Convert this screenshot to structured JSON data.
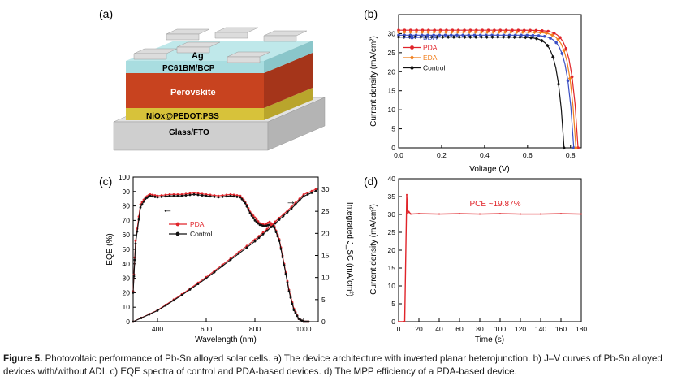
{
  "panels": {
    "a": {
      "label": "(a)",
      "layers": [
        "Ag",
        "PC61BM/BCP",
        "Perovskite",
        "NiOx@PEDOT:PSS",
        "Glass/FTO"
      ],
      "colors": {
        "ag": "#d9d9d9",
        "pcbm": "#a9dde0",
        "perovskite": "#c8431f",
        "nio": "#d7c23a",
        "glass": "#cfcfcf"
      }
    },
    "b": {
      "label": "(b)"
    },
    "c": {
      "label": "(c)"
    },
    "d": {
      "label": "(d)"
    }
  },
  "chart_data": [
    {
      "panel": "b",
      "type": "line",
      "xlabel": "Voltage (V)",
      "ylabel": "Current density (mA/cm²)",
      "xlim": [
        0.0,
        0.85
      ],
      "ylim": [
        0,
        35
      ],
      "xticks": [
        "0.0",
        "0.2",
        "0.4",
        "0.6",
        "0.8"
      ],
      "yticks": [
        "0",
        "5",
        "10",
        "15",
        "20",
        "25",
        "30"
      ],
      "legend_position": "top-left",
      "series": [
        {
          "name": "BDA",
          "color": "#3b4fc4",
          "marker": "circle",
          "Jsc": 29.6,
          "Voc": 0.815,
          "vk": 0.7,
          "n": 0.03
        },
        {
          "name": "PDA",
          "color": "#e0242a",
          "marker": "circle",
          "Jsc": 30.9,
          "Voc": 0.835,
          "vk": 0.72,
          "n": 0.03
        },
        {
          "name": "EDA",
          "color": "#f08020",
          "marker": "diamond",
          "Jsc": 30.4,
          "Voc": 0.825,
          "vk": 0.71,
          "n": 0.03
        },
        {
          "name": "Control",
          "color": "#111111",
          "marker": "diamond",
          "Jsc": 29.1,
          "Voc": 0.77,
          "vk": 0.66,
          "n": 0.03
        }
      ]
    },
    {
      "panel": "c",
      "type": "line",
      "xlabel": "Wavelength (nm)",
      "ylabel": "EQE (%)",
      "y2label": "Integrated J_SC (mA/cm²)",
      "xlim": [
        300,
        1060
      ],
      "ylim": [
        0,
        100
      ],
      "y2lim": [
        0,
        30
      ],
      "xticks": [
        "400",
        "600",
        "800",
        "1000"
      ],
      "yticks": [
        "0",
        "10",
        "20",
        "30",
        "40",
        "50",
        "60",
        "70",
        "80",
        "90",
        "100"
      ],
      "y2ticks": [
        "0",
        "5",
        "10",
        "15",
        "20",
        "25",
        "30"
      ],
      "legend_position": "center-left",
      "series": [
        {
          "name": "PDA",
          "color": "#e0242a",
          "axis": "left",
          "x": [
            300,
            310,
            330,
            350,
            370,
            400,
            450,
            500,
            550,
            600,
            650,
            700,
            740,
            760,
            780,
            800,
            820,
            840,
            860,
            880,
            900,
            920,
            940,
            960,
            980,
            1000,
            1020
          ],
          "y": [
            21,
            56,
            81,
            86,
            88,
            87,
            88,
            88,
            89,
            88,
            87,
            88,
            87,
            83,
            76,
            72,
            68,
            67,
            69,
            66,
            57,
            40,
            22,
            9,
            2,
            0,
            0
          ]
        },
        {
          "name": "Control",
          "color": "#111111",
          "axis": "left",
          "x": [
            300,
            310,
            330,
            350,
            370,
            400,
            450,
            500,
            550,
            600,
            650,
            700,
            740,
            760,
            780,
            800,
            820,
            840,
            860,
            880,
            900,
            920,
            940,
            960,
            980,
            1000,
            1020
          ],
          "y": [
            20,
            54,
            79,
            85,
            87,
            86,
            87,
            87,
            88,
            87,
            86,
            87,
            86,
            82,
            75,
            70,
            67,
            66,
            67,
            65,
            56,
            39,
            21,
            8,
            2,
            0,
            0
          ]
        },
        {
          "name": "PDA integrated",
          "color": "#e0242a",
          "axis": "right",
          "x": [
            300,
            400,
            500,
            600,
            700,
            800,
            850,
            900,
            950,
            1000,
            1050
          ],
          "y": [
            0,
            2.6,
            6.2,
            10.1,
            14.3,
            18.6,
            21.0,
            23.5,
            26.0,
            28.8,
            30.0
          ]
        },
        {
          "name": "Control integrated",
          "color": "#111111",
          "axis": "right",
          "x": [
            300,
            400,
            500,
            600,
            700,
            800,
            850,
            900,
            950,
            1000,
            1050
          ],
          "y": [
            0,
            2.5,
            6.0,
            9.8,
            14.0,
            18.2,
            20.6,
            23.1,
            25.6,
            28.4,
            29.6
          ]
        }
      ],
      "annotations": [
        "←",
        "→"
      ]
    },
    {
      "panel": "d",
      "type": "line",
      "xlabel": "Time (s)",
      "ylabel": "Current density (mA/cm²)",
      "xlim": [
        0,
        180
      ],
      "ylim": [
        0,
        40
      ],
      "xticks": [
        "0",
        "20",
        "40",
        "60",
        "80",
        "100",
        "120",
        "140",
        "160",
        "180"
      ],
      "yticks": [
        "0",
        "5",
        "10",
        "15",
        "20",
        "25",
        "30",
        "35",
        "40"
      ],
      "annotation": "PCE ~19.87%",
      "series": [
        {
          "name": "PDA",
          "color": "#e0242a",
          "x": [
            0,
            5,
            6,
            8,
            9,
            10,
            12,
            20,
            40,
            60,
            80,
            100,
            120,
            140,
            160,
            180
          ],
          "y": [
            0,
            0,
            0,
            35.5,
            30.2,
            30.8,
            30.1,
            30.2,
            30.1,
            30.2,
            30.1,
            30.2,
            30.1,
            30.1,
            30.2,
            30.1
          ]
        }
      ]
    }
  ],
  "caption": {
    "label": "Figure 5.",
    "text": "Photovoltaic performance of Pb-Sn alloyed solar cells. a) The device architecture with inverted planar heterojunction. b) J–V curves of Pb-Sn alloyed devices with/without ADI. c) EQE spectra of control and PDA-based devices. d) The MPP efficiency of a PDA-based device."
  }
}
